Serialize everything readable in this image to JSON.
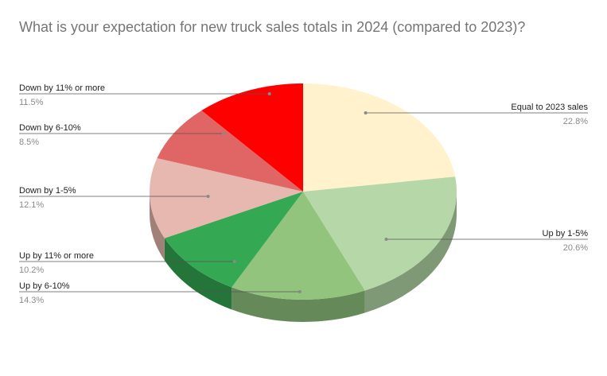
{
  "chart_data": {
    "type": "pie",
    "style": "3d",
    "title": "What is your expectation for new truck sales totals in 2024 (compared to 2023)?",
    "slices": [
      {
        "label": "Equal to 2023 sales",
        "value": 22.8,
        "display": "22.8%",
        "color": "#fff2cc",
        "side_color": "#b8ad8c"
      },
      {
        "label": "Up by 1-5%",
        "value": 20.6,
        "display": "20.6%",
        "color": "#b6d7a8",
        "side_color": "#7f9875"
      },
      {
        "label": "Up by 6-10%",
        "value": 14.3,
        "display": "14.3%",
        "color": "#93c47d",
        "side_color": "#66895a"
      },
      {
        "label": "Up by 11% or more",
        "value": 10.2,
        "display": "10.2%",
        "color": "#34a853",
        "side_color": "#237539"
      },
      {
        "label": "Down by 1-5%",
        "value": 12.1,
        "display": "12.1%",
        "color": "#e6b8af",
        "side_color": "#a1807a"
      },
      {
        "label": "Down by 6-10%",
        "value": 8.5,
        "display": "8.5%",
        "color": "#e06666",
        "side_color": "#9c4747"
      },
      {
        "label": "Down by 11% or more",
        "value": 11.5,
        "display": "11.5%",
        "color": "#ff0000",
        "side_color": "#b30000"
      }
    ],
    "legend": "none",
    "labels": "outside with leader lines"
  }
}
